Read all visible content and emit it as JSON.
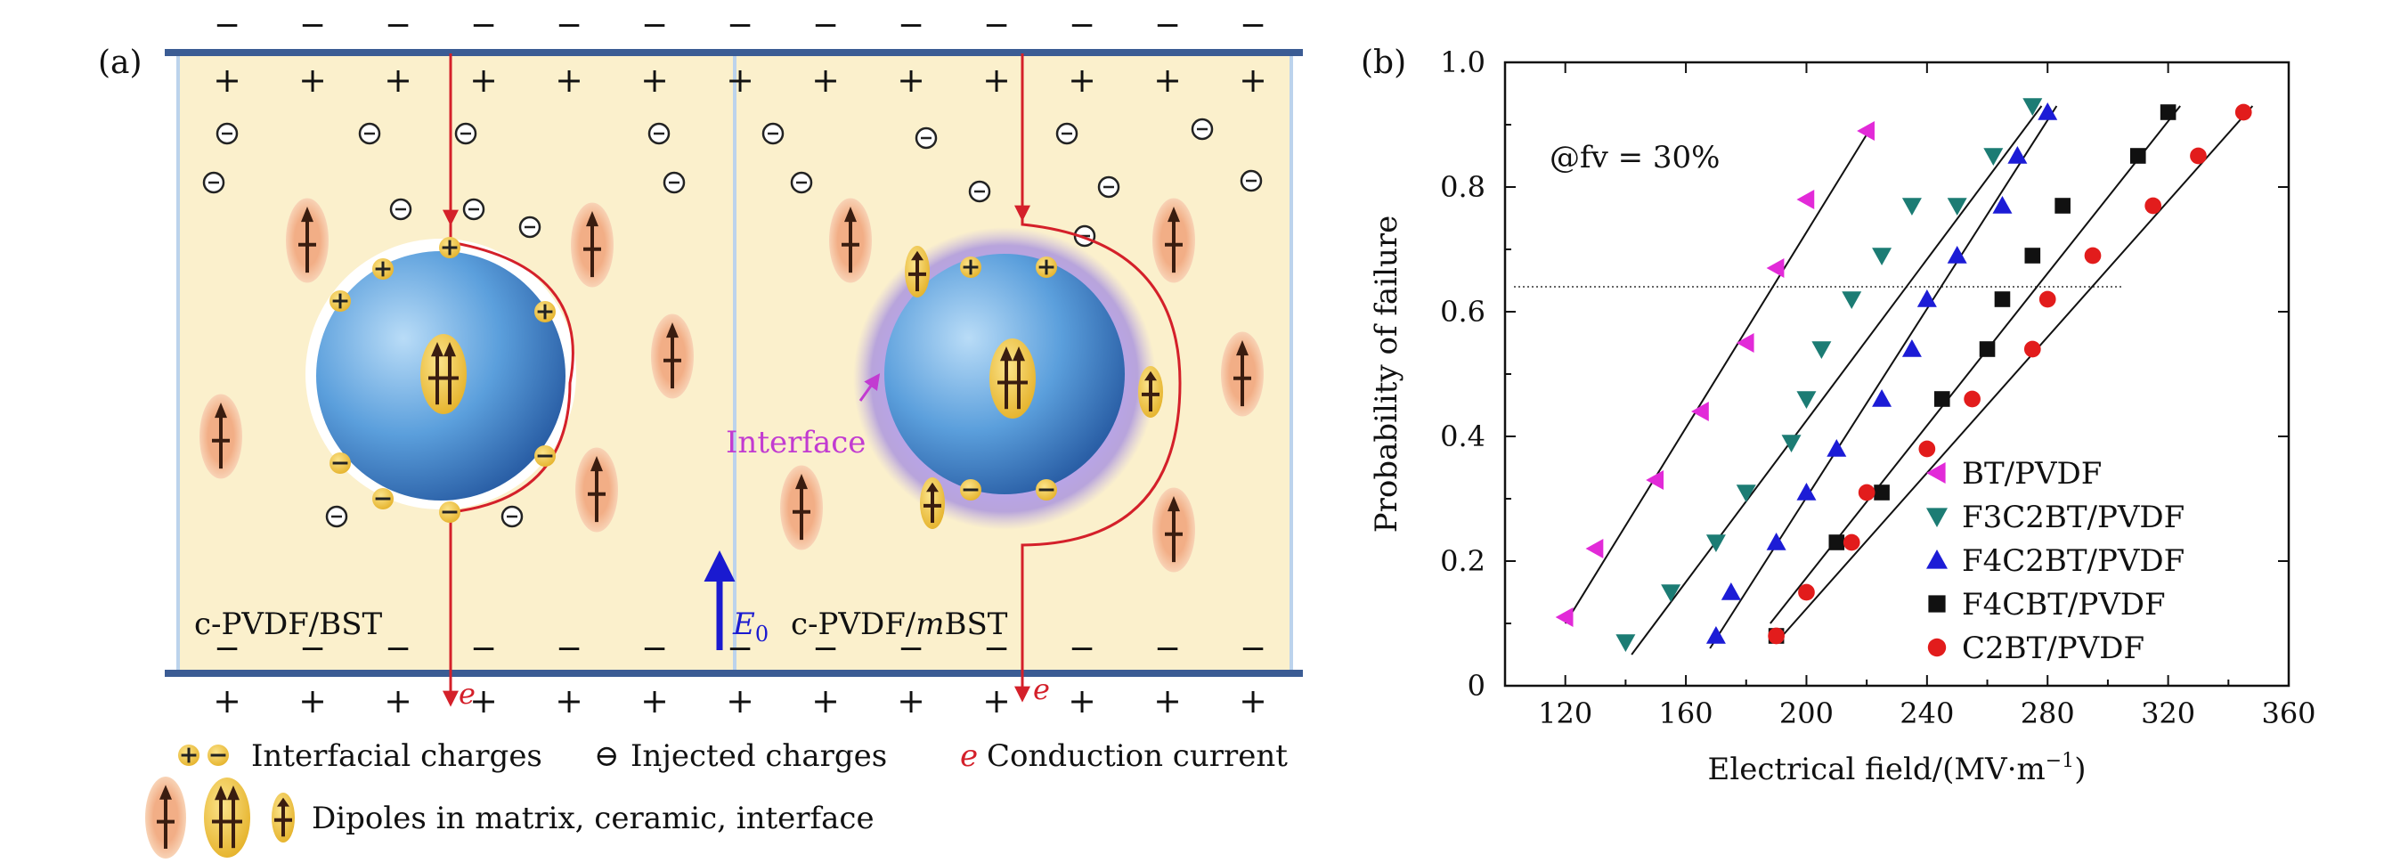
{
  "panel_a": {
    "tag": "(a)",
    "left_label": "c-PVDF/BST",
    "right_label_prefix": "c-PVDF/",
    "right_label_italic": "m",
    "right_label_suffix": "BST",
    "interface_label": "Interface",
    "field_label": "E",
    "field_subscript": "0",
    "current_symbol": "e",
    "minus_sign": "−",
    "plus_sign": "+",
    "legend": {
      "interfacial": "Interfacial charges",
      "injected_symbol": "⊖",
      "injected": "Injected charges",
      "current_symbol": "e",
      "current": "Conduction current",
      "dipoles": "Dipoles in matrix, ceramic, interface"
    },
    "colors": {
      "matrix": "#fbf0cc",
      "electrode": "#3b5c94",
      "sphere": "#4a8fd0",
      "current": "#d4202a",
      "interface_glow": "#8a6ad6",
      "interface_text": "#c23bd1",
      "field_arrow": "#1a1ad0",
      "dipole_halo": "#f4b487",
      "charge_fill": "#f0c43a"
    }
  },
  "panel_b": {
    "tag": "(b)",
    "annotation": "@fv = 30%",
    "xlabel": "Electrical field/(MV·m",
    "xlabel_exp": "−1",
    "xlabel_close": ")",
    "ylabel": "Probability of failure"
  },
  "chart_data": {
    "type": "scatter",
    "xlim": [
      100,
      360
    ],
    "ylim": [
      0,
      1.0
    ],
    "xticks": [
      "120",
      "160",
      "200",
      "240",
      "280",
      "320",
      "360"
    ],
    "yticks": [
      "0",
      "0.2",
      "0.4",
      "0.6",
      "0.8",
      "1.0"
    ],
    "reference_line_y": 0.64,
    "legend_position": "bottom-right",
    "grid": false,
    "series": [
      {
        "name": "BT/PVDF",
        "marker": "triangle-left",
        "color": "#e22ad8",
        "x": [
          120,
          130,
          150,
          165,
          180,
          190,
          200,
          220
        ],
        "y": [
          0.11,
          0.22,
          0.33,
          0.44,
          0.55,
          0.67,
          0.78,
          0.89
        ],
        "fit": [
          [
            120,
            0.1
          ],
          [
            222,
            0.9
          ]
        ]
      },
      {
        "name": "F3C2BT/PVDF",
        "marker": "triangle-down",
        "color": "#1c7c74",
        "x": [
          140,
          155,
          170,
          180,
          195,
          200,
          205,
          215,
          225,
          235,
          250,
          262,
          275
        ],
        "y": [
          0.07,
          0.15,
          0.23,
          0.31,
          0.39,
          0.46,
          0.54,
          0.62,
          0.69,
          0.77,
          0.77,
          0.85,
          0.93
        ],
        "fit": [
          [
            142,
            0.05
          ],
          [
            278,
            0.93
          ]
        ]
      },
      {
        "name": "F4C2BT/PVDF",
        "marker": "triangle-up",
        "color": "#1c1cd6",
        "x": [
          170,
          175,
          190,
          200,
          210,
          225,
          235,
          240,
          250,
          265,
          270,
          280
        ],
        "y": [
          0.08,
          0.15,
          0.23,
          0.31,
          0.38,
          0.46,
          0.54,
          0.62,
          0.69,
          0.77,
          0.85,
          0.92
        ],
        "fit": [
          [
            168,
            0.06
          ],
          [
            283,
            0.93
          ]
        ]
      },
      {
        "name": "F4CBT/PVDF",
        "marker": "square",
        "color": "#111111",
        "x": [
          190,
          210,
          225,
          245,
          260,
          265,
          275,
          285,
          310,
          320
        ],
        "y": [
          0.08,
          0.23,
          0.31,
          0.46,
          0.54,
          0.62,
          0.69,
          0.77,
          0.85,
          0.92
        ],
        "fit": [
          [
            188,
            0.1
          ],
          [
            324,
            0.93
          ]
        ]
      },
      {
        "name": "C2BT/PVDF",
        "marker": "circle",
        "color": "#e21c1c",
        "x": [
          190,
          200,
          215,
          220,
          240,
          255,
          275,
          280,
          295,
          315,
          330,
          345
        ],
        "y": [
          0.08,
          0.15,
          0.23,
          0.31,
          0.38,
          0.46,
          0.54,
          0.62,
          0.69,
          0.77,
          0.85,
          0.92
        ],
        "fit": [
          [
            192,
            0.08
          ],
          [
            348,
            0.93
          ]
        ]
      }
    ]
  }
}
